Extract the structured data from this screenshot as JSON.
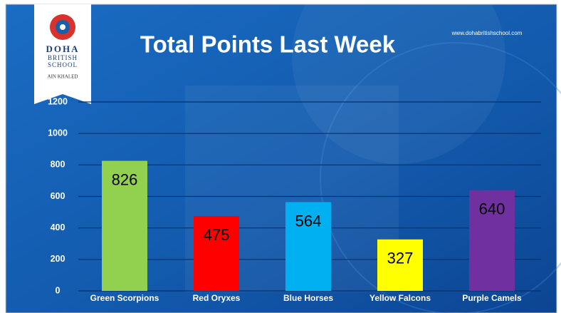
{
  "chart_data": {
    "type": "bar",
    "title": "Total Points Last Week",
    "website": "www.dohabritishschool.com",
    "logo": {
      "line1": "DOHA",
      "line2": "BRITISH",
      "line3": "SCHOOL",
      "line4": "AIN KHALED"
    },
    "categories": [
      "Green Scorpions",
      "Red Oryxes",
      "Blue Horses",
      "Yellow Falcons",
      "Purple Camels"
    ],
    "values": [
      826,
      475,
      564,
      327,
      640
    ],
    "colors": [
      "#92d050",
      "#ff0000",
      "#00b0f0",
      "#ffff00",
      "#7030a0"
    ],
    "ylim": [
      0,
      1200
    ],
    "yticks": [
      0,
      200,
      400,
      600,
      800,
      1000,
      1200
    ],
    "grid": true
  }
}
